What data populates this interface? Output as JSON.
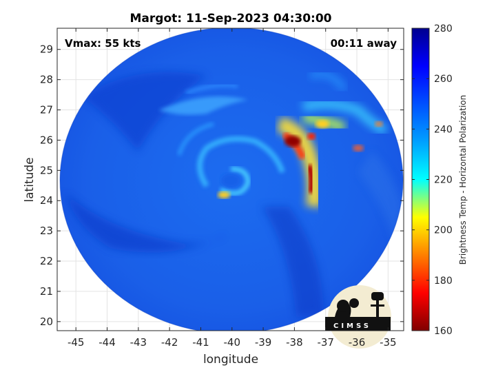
{
  "chart_data": {
    "type": "heatmap",
    "title": "Margot: 11-Sep-2023 04:30:00",
    "xlabel": "longitude",
    "ylabel": "latitude",
    "xlim": [
      -45.6,
      -34.5
    ],
    "ylim": [
      19.7,
      29.7
    ],
    "x_ticks": [
      -45,
      -44,
      -43,
      -42,
      -41,
      -40,
      -39,
      -38,
      -37,
      -36,
      -35
    ],
    "y_ticks": [
      20,
      21,
      22,
      23,
      24,
      25,
      26,
      27,
      28,
      29
    ],
    "grid": true,
    "annotations": {
      "top_left": "Vmax: 55 kts",
      "top_right": "00:11 away"
    },
    "colorbar": {
      "label": "Brightness Temp - Horizontal Polarization",
      "range": [
        160,
        280
      ],
      "ticks": [
        160,
        180,
        200,
        220,
        240,
        260,
        280
      ],
      "colormap": "jet"
    },
    "storm_center": {
      "lon": -40.3,
      "lat": 24.4
    },
    "logo_text": "CIMSS"
  }
}
